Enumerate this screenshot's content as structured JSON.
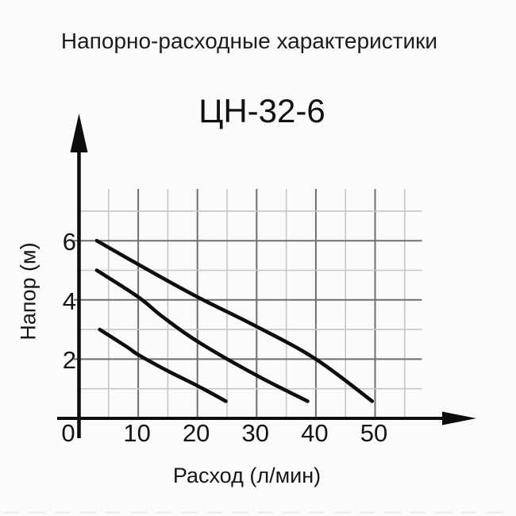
{
  "page": {
    "heading": "Напорно-расходные характеристики"
  },
  "chart_data": {
    "type": "line",
    "title": "ЦН-32-6",
    "xlabel": "Расход (л/мин)",
    "ylabel": "Напор (м)",
    "xlim": [
      0,
      58
    ],
    "ylim": [
      0,
      7.8
    ],
    "x_ticks": [
      0,
      10,
      20,
      30,
      40,
      50
    ],
    "y_ticks": [
      2,
      4,
      6
    ],
    "grid": {
      "visible": true,
      "x_step": 5,
      "x_major_every": 10,
      "y_step": 1,
      "y_major_every": 2
    },
    "legend": "none",
    "series": [
      {
        "name": "curve-upper",
        "points": [
          [
            3,
            6
          ],
          [
            10,
            5.2
          ],
          [
            20,
            4.1
          ],
          [
            30,
            3.1
          ],
          [
            40,
            2.0
          ],
          [
            49.5,
            0.58
          ]
        ]
      },
      {
        "name": "curve-middle",
        "points": [
          [
            3,
            5
          ],
          [
            10,
            4.1
          ],
          [
            14,
            3.45
          ],
          [
            20,
            2.6
          ],
          [
            30,
            1.45
          ],
          [
            38.6,
            0.58
          ]
        ]
      },
      {
        "name": "curve-lower",
        "points": [
          [
            3.5,
            3
          ],
          [
            8.2,
            2.4
          ],
          [
            10,
            2.15
          ],
          [
            15,
            1.6
          ],
          [
            20,
            1.1
          ],
          [
            24.8,
            0.58
          ]
        ]
      }
    ],
    "colors": {
      "curve": "#0d0d0d",
      "axis": "#0d0d0d",
      "grid_major": "#6f6f6f",
      "grid_minor": "#c6c6c6",
      "background": "#fbfbfb",
      "text": "#1a1a1a"
    }
  }
}
